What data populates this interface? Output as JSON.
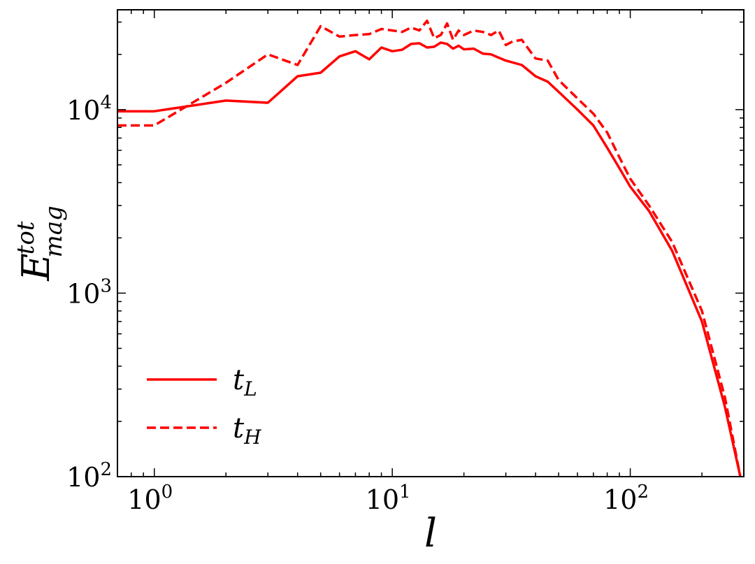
{
  "chart_data": {
    "type": "line",
    "xscale": "log",
    "yscale": "log",
    "xlim": [
      0.7,
      300
    ],
    "ylim": [
      100,
      35000
    ],
    "xlabel": "l",
    "ylabel": {
      "base": "E",
      "sup": "tot",
      "sub": "mag"
    },
    "xticks": [
      {
        "value": 1,
        "base": "10",
        "exp": "0"
      },
      {
        "value": 10,
        "base": "10",
        "exp": "1"
      },
      {
        "value": 100,
        "base": "10",
        "exp": "2"
      }
    ],
    "yticks": [
      {
        "value": 100,
        "base": "10",
        "exp": "2"
      },
      {
        "value": 1000,
        "base": "10",
        "exp": "3"
      },
      {
        "value": 10000,
        "base": "10",
        "exp": "4"
      }
    ],
    "grid": false,
    "legend_position": "lower-left",
    "color": "#ff0000",
    "series": [
      {
        "name": "t_L",
        "label_base": "t",
        "label_sub": "L",
        "style": "solid",
        "x": [
          0.7,
          1,
          2,
          3,
          4,
          5,
          6,
          7,
          8,
          9,
          10,
          11,
          12,
          13,
          14,
          15,
          16,
          17,
          18,
          19,
          20,
          22,
          24,
          26,
          28,
          30,
          35,
          40,
          45,
          50,
          60,
          70,
          80,
          90,
          100,
          120,
          150,
          200,
          250,
          290
        ],
        "y": [
          9800,
          9800,
          11200,
          10900,
          15200,
          15900,
          19500,
          20800,
          18800,
          21800,
          20800,
          21200,
          22800,
          23000,
          21800,
          22000,
          23200,
          22800,
          21500,
          22300,
          21300,
          21500,
          20200,
          20000,
          19200,
          18500,
          17500,
          15200,
          14200,
          12500,
          10000,
          8200,
          6200,
          4800,
          3800,
          2800,
          1700,
          700,
          240,
          100
        ]
      },
      {
        "name": "t_H",
        "label_base": "t",
        "label_sub": "H",
        "style": "dashed",
        "x": [
          0.7,
          1,
          2,
          3,
          4,
          5,
          6,
          7,
          8,
          9,
          10,
          11,
          12,
          13,
          14,
          15,
          16,
          17,
          18,
          19,
          20,
          22,
          24,
          26,
          28,
          30,
          32,
          35,
          40,
          45,
          50,
          60,
          70,
          80,
          90,
          100,
          120,
          150,
          200,
          250,
          290
        ],
        "y": [
          8200,
          8200,
          14000,
          20000,
          17500,
          28500,
          25000,
          25500,
          25800,
          27500,
          27000,
          26500,
          28000,
          27000,
          30500,
          24500,
          25500,
          29500,
          24000,
          27000,
          25500,
          27000,
          26500,
          25500,
          27000,
          22500,
          23500,
          24000,
          19000,
          18500,
          14500,
          11500,
          9500,
          7500,
          5500,
          4200,
          3000,
          1900,
          800,
          270,
          100
        ]
      }
    ]
  }
}
